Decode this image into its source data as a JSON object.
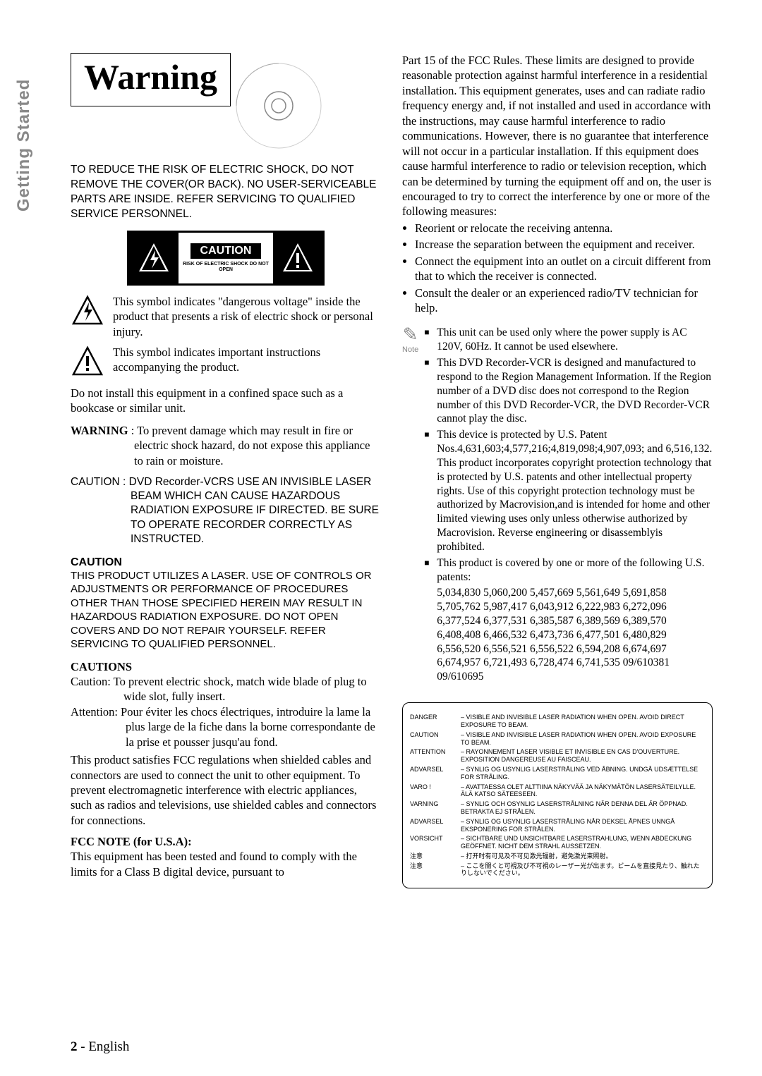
{
  "side_label": "Getting Started",
  "title": "Warning",
  "left": {
    "intro": "TO REDUCE THE RISK OF ELECTRIC SHOCK, DO NOT REMOVE THE COVER(OR BACK). NO USER-SERVICEABLE PARTS ARE INSIDE. REFER SERVICING TO QUALIFIED SERVICE PERSONNEL.",
    "caution_label": "CAUTION",
    "caution_sub": "RISK OF ELECTRIC SHOCK DO NOT OPEN",
    "symbol1": "This symbol indicates \"dangerous voltage\" inside the product that presents a risk of electric shock or personal injury.",
    "symbol2": "This symbol indicates important instructions accompanying the product.",
    "confined": "Do not install this equipment in a confined space such as a bookcase or similar unit.",
    "warning_label": "WARNING",
    "warning_text": " : To prevent damage which may result in fire or electric shock hazard, do not expose this appliance to rain or moisture.",
    "caution_dvd": "CAUTION : DVD Recorder-VCRS USE AN INVISIBLE LASER BEAM WHICH CAN CAUSE HAZARDOUS RADIATION EXPOSURE IF DIRECTED. BE SURE TO OPERATE RECORDER CORRECTLY AS INSTRUCTED.",
    "caution_heading": "CAUTION",
    "laser_caution": "THIS PRODUCT UTILIZES A LASER. USE OF CONTROLS OR ADJUSTMENTS OR PERFORMANCE OF PROCEDURES OTHER THAN THOSE SPECIFIED HEREIN MAY RESULT IN HAZARDOUS RADIATION EXPOSURE. DO NOT OPEN COVERS AND DO NOT REPAIR YOURSELF. REFER SERVICING TO QUALIFIED PERSONNEL.",
    "cautions_heading": "CAUTIONS",
    "caution_en": "Caution: To prevent electric shock, match wide blade of plug to wide slot, fully insert.",
    "caution_fr": "Attention: Pour éviter les chocs électriques, introduire la lame la plus large de la fiche dans la borne correspondante de la prise et pousser jusqu'au fond.",
    "fcc_body": "This product satisfies FCC regulations when shielded cables and connectors are used to connect the unit to other equipment. To prevent electromagnetic interference with electric appliances, such as radios and televisions, use shielded cables and connectors for connections.",
    "fcc_note_heading": "FCC NOTE (for U.S.A):",
    "fcc_note_body": "This equipment has been tested and found to comply with the limits for a Class B digital device, pursuant to"
  },
  "right": {
    "part15": "Part 15 of the FCC Rules. These limits are designed to provide reasonable protection against harmful interference in a residential installation. This equipment generates, uses and can radiate radio frequency energy and, if not installed and used in accordance with the instructions, may cause harmful interference to radio communications. However, there is no guarantee that interference will not occur in a particular installation. If this equipment does cause harmful interference to radio or television reception, which can be determined by turning the equipment off and on, the user is encouraged to try to correct the interference by one or more of the following measures:",
    "bullets": [
      "Reorient or relocate the receiving antenna.",
      "Increase the separation between the equipment and receiver.",
      "Connect the equipment into an outlet on a circuit different from that to which the receiver is connected.",
      "Consult the dealer or an experienced radio/TV technician for help."
    ],
    "note_label": "Note",
    "notes": [
      "This unit can be used only where the power supply is AC 120V, 60Hz. It cannot be used elsewhere.",
      "This DVD Recorder-VCR is designed and manufactured to respond to the Region Management Information. If the Region number of a DVD disc does not correspond to the Region number of this DVD Recorder-VCR, the DVD Recorder-VCR cannot play the disc.",
      "This device is protected by U.S. Patent Nos.4,631,603;4,577,216;4,819,098;4,907,093; and 6,516,132. This product incorporates copyright protection technology that is protected by U.S. patents and other intellectual property rights. Use of this copyright protection technology must be authorized by Macrovision,and is intended for home and other limited viewing uses only unless otherwise authorized by Macrovision. Reverse engineering or disassemblyis prohibited.",
      "This product is covered by one or more of the following U.S. patents:"
    ],
    "patents": "5,034,830 5,060,200 5,457,669 5,561,649 5,691,858 5,705,762 5,987,417 6,043,912 6,222,983 6,272,096 6,377,524 6,377,531 6,385,587 6,389,569 6,389,570 6,408,408 6,466,532 6,473,736 6,477,501 6,480,829 6,556,520 6,556,521 6,556,522 6,594,208 6,674,697 6,674,957 6,721,493 6,728,474 6,741,535 09/610381 09/610695",
    "laser_warnings": [
      {
        "label": "DANGER",
        "text": "VISIBLE AND INVISIBLE LASER RADIATION WHEN OPEN. AVOID DIRECT EXPOSURE TO BEAM."
      },
      {
        "label": "CAUTION",
        "text": "VISIBLE AND INVISIBLE LASER RADIATION WHEN OPEN. AVOID EXPOSURE TO BEAM."
      },
      {
        "label": "ATTENTION",
        "text": "RAYONNEMENT LASER VISIBLE ET INVISIBLE EN CAS D'OUVERTURE. EXPOSITION DANGEREUSE AU FAISCEAU."
      },
      {
        "label": "ADVARSEL",
        "text": "SYNLIG OG USYNLIG LASERSTRÅLING VED ÅBNING. UNDGÅ UDSÆTTELSE FOR STRÅLING."
      },
      {
        "label": "VARO !",
        "text": "AVATTAESSA OLET ALTTIINA NÄKYVÄÄ JA NÄKYMÄTÖN LASERSÄTEILYLLE. ÄLÄ KATSO SÄTEESEEN."
      },
      {
        "label": "VARNING",
        "text": "SYNLIG OCH OSYNLIG LASERSTRÅLNING NÄR DENNA DEL ÄR ÖPPNAD. BETRAKTA EJ STRÅLEN."
      },
      {
        "label": "ADVARSEL",
        "text": "SYNLIG OG USYNLIG LASERSTRÅLING NÅR DEKSEL ÅPNES UNNGÅ EKSPONERING FOR STRÅLEN."
      },
      {
        "label": "VORSICHT",
        "text": "SICHTBARE UND UNSICHTBARE LASERSTRAHLUNG, WENN ABDECKUNG GEÖFFNET. NICHT DEM STRAHL AUSSETZEN."
      },
      {
        "label": "注意",
        "text": "打开时有可见及不可见激光辐射，避免激光束照射。"
      },
      {
        "label": "注意",
        "text": "ここを開くと可視及び不可視のレーザー光が出ます。ビームを直接見たり、触れたりしないでください。"
      }
    ]
  },
  "footer": {
    "num": "2",
    "sep": " - ",
    "lang": "English"
  }
}
